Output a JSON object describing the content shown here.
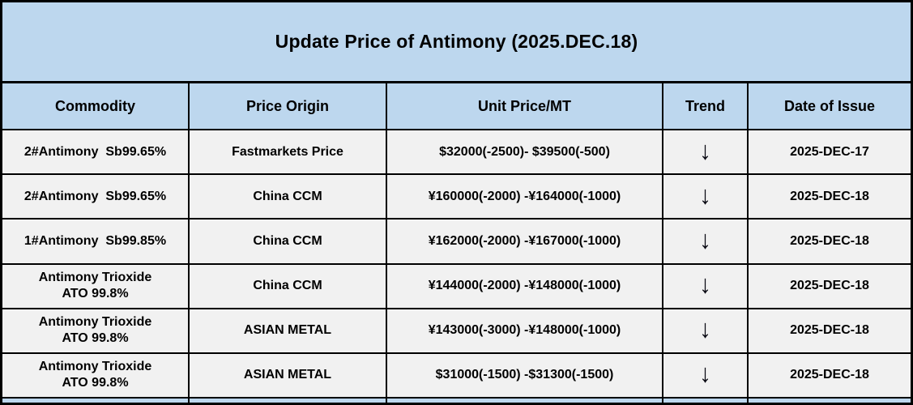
{
  "title": "Update Price of Antimony (2025.DEC.18)",
  "columns": {
    "commodity": "Commodity",
    "origin": "Price Origin",
    "price": "Unit Price/MT",
    "trend": "Trend",
    "date": "Date of Issue"
  },
  "icons": {
    "trend_down": "↓"
  },
  "colors": {
    "band_bg": "#bdd7ee",
    "row_bg": "#f1f1f1",
    "border": "#000000",
    "text": "#000000"
  },
  "rows": [
    {
      "commodity_line1": "2#Antimony  Sb99.65%",
      "commodity_line2": "",
      "origin": "Fastmarkets Price",
      "price": "$32000(-2500)- $39500(-500)",
      "trend": "↓",
      "date": "2025-DEC-17"
    },
    {
      "commodity_line1": "2#Antimony  Sb99.65%",
      "commodity_line2": "",
      "origin": "China CCM",
      "price": "¥160000(-2000) -¥164000(-1000)",
      "trend": "↓",
      "date": "2025-DEC-18"
    },
    {
      "commodity_line1": "1#Antimony  Sb99.85%",
      "commodity_line2": "",
      "origin": "China CCM",
      "price": "¥162000(-2000) -¥167000(-1000)",
      "trend": "↓",
      "date": "2025-DEC-18"
    },
    {
      "commodity_line1": "Antimony Trioxide",
      "commodity_line2": "ATO 99.8%",
      "origin": "China CCM",
      "price": "¥144000(-2000) -¥148000(-1000)",
      "trend": "↓",
      "date": "2025-DEC-18"
    },
    {
      "commodity_line1": "Antimony Trioxide",
      "commodity_line2": "ATO 99.8%",
      "origin": "ASIAN METAL",
      "price": "¥143000(-3000) -¥148000(-1000)",
      "trend": "↓",
      "date": "2025-DEC-18"
    },
    {
      "commodity_line1": "Antimony Trioxide",
      "commodity_line2": "ATO 99.8%",
      "origin": "ASIAN METAL",
      "price": "$31000(-1500) -$31300(-1500)",
      "trend": "↓",
      "date": "2025-DEC-18"
    }
  ]
}
